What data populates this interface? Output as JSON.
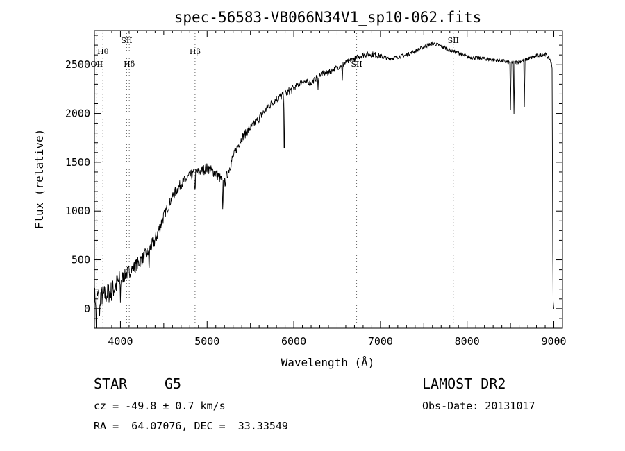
{
  "chart_data": {
    "type": "line",
    "title": "spec-56583-VB066N34V1_sp10-062.fits",
    "xlabel": "Wavelength (Å)",
    "ylabel": "Flux (relative)",
    "xlim": [
      3700,
      9100
    ],
    "ylim": [
      -200,
      2850
    ],
    "xticks": [
      4000,
      5000,
      6000,
      7000,
      8000,
      9000
    ],
    "yticks": [
      0,
      500,
      1000,
      1500,
      2000,
      2500
    ],
    "grid": false,
    "legend": "none",
    "line_color": "#000000",
    "spectrum_anchor_points": [
      [
        3700,
        120
      ],
      [
        3800,
        130
      ],
      [
        3900,
        180
      ],
      [
        4000,
        300
      ],
      [
        4100,
        380
      ],
      [
        4200,
        460
      ],
      [
        4300,
        560
      ],
      [
        4400,
        700
      ],
      [
        4500,
        950
      ],
      [
        4600,
        1150
      ],
      [
        4700,
        1280
      ],
      [
        4800,
        1360
      ],
      [
        4900,
        1400
      ],
      [
        5000,
        1440
      ],
      [
        5100,
        1390
      ],
      [
        5200,
        1280
      ],
      [
        5300,
        1560
      ],
      [
        5400,
        1750
      ],
      [
        5500,
        1850
      ],
      [
        5600,
        1950
      ],
      [
        5700,
        2070
      ],
      [
        5800,
        2150
      ],
      [
        5900,
        2200
      ],
      [
        6000,
        2260
      ],
      [
        6100,
        2330
      ],
      [
        6200,
        2310
      ],
      [
        6300,
        2400
      ],
      [
        6400,
        2420
      ],
      [
        6500,
        2470
      ],
      [
        6600,
        2520
      ],
      [
        6700,
        2560
      ],
      [
        6800,
        2600
      ],
      [
        6900,
        2610
      ],
      [
        7000,
        2590
      ],
      [
        7100,
        2560
      ],
      [
        7200,
        2580
      ],
      [
        7300,
        2600
      ],
      [
        7400,
        2640
      ],
      [
        7500,
        2680
      ],
      [
        7600,
        2720
      ],
      [
        7700,
        2690
      ],
      [
        7800,
        2650
      ],
      [
        7900,
        2620
      ],
      [
        8000,
        2580
      ],
      [
        8100,
        2570
      ],
      [
        8200,
        2560
      ],
      [
        8300,
        2550
      ],
      [
        8400,
        2540
      ],
      [
        8500,
        2520
      ],
      [
        8600,
        2530
      ],
      [
        8700,
        2560
      ],
      [
        8800,
        2590
      ],
      [
        8900,
        2610
      ],
      [
        8960,
        2550
      ],
      [
        8980,
        2480
      ],
      [
        8990,
        100
      ],
      [
        9000,
        0
      ]
    ],
    "absorption_features": [
      {
        "x": 3720,
        "depth": 350
      },
      {
        "x": 3760,
        "depth": 250
      },
      {
        "x": 4000,
        "depth": 200
      },
      {
        "x": 4330,
        "depth": 220
      },
      {
        "x": 4860,
        "depth": 200
      },
      {
        "x": 5180,
        "depth": 320
      },
      {
        "x": 5890,
        "depth": 680
      },
      {
        "x": 6280,
        "depth": 150
      },
      {
        "x": 6560,
        "depth": 180
      },
      {
        "x": 8500,
        "depth": 500
      },
      {
        "x": 8540,
        "depth": 550
      },
      {
        "x": 8660,
        "depth": 480
      }
    ],
    "line_markers": [
      {
        "label": "Hθ",
        "x": 3798,
        "row": 1
      },
      {
        "label": "OII",
        "x": 3727,
        "row": 2
      },
      {
        "label": "SII",
        "x": 4072,
        "row": 0
      },
      {
        "label": "Hδ",
        "x": 4102,
        "row": 2
      },
      {
        "label": "Hβ",
        "x": 4861,
        "row": 1
      },
      {
        "label": "SII",
        "x": 6725,
        "row": 2
      },
      {
        "label": "SII",
        "x": 7840,
        "row": 0
      }
    ]
  },
  "info": {
    "class": "STAR",
    "subclass": "G5",
    "survey": "LAMOST DR2",
    "cz": "cz = -49.8 ± 0.7 km/s",
    "obs_date": "Obs-Date: 20131017",
    "coords": "RA =  64.07076, DEC =  33.33549"
  }
}
